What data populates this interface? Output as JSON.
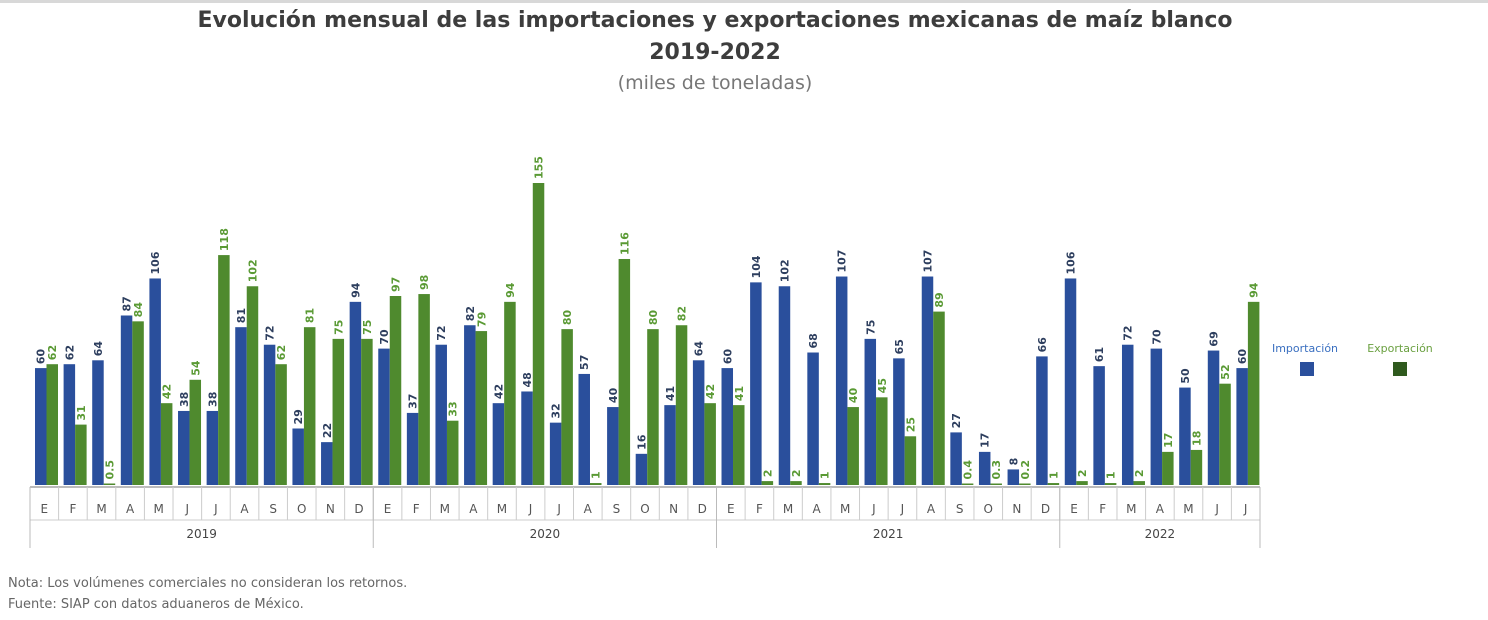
{
  "chart_data": {
    "type": "bar",
    "title": "Evolución mensual de las importaciones y exportaciones mexicanas de maíz blanco",
    "title_line2": "2019-2022",
    "subtitle": "(miles de toneladas)",
    "years": [
      {
        "label": "2019",
        "months": [
          "E",
          "F",
          "M",
          "A",
          "M",
          "J",
          "J",
          "A",
          "S",
          "O",
          "N",
          "D"
        ]
      },
      {
        "label": "2020",
        "months": [
          "E",
          "F",
          "M",
          "A",
          "M",
          "J",
          "J",
          "A",
          "S",
          "O",
          "N",
          "D"
        ]
      },
      {
        "label": "2021",
        "months": [
          "E",
          "F",
          "M",
          "A",
          "M",
          "J",
          "J",
          "A",
          "S",
          "O",
          "N",
          "D"
        ]
      },
      {
        "label": "2022",
        "months": [
          "E",
          "F",
          "M",
          "A",
          "M",
          "J",
          "J"
        ]
      }
    ],
    "series": [
      {
        "name": "Importación",
        "color": "#2a4f9c",
        "values": [
          60,
          62,
          64,
          87,
          106,
          38,
          38,
          81,
          72,
          29,
          22,
          94,
          70,
          37,
          72,
          82,
          42,
          48,
          32,
          57,
          40,
          16,
          41,
          64,
          60,
          104,
          102,
          68,
          107,
          75,
          65,
          107,
          27,
          17,
          8,
          66,
          106,
          61,
          72,
          70,
          50,
          69,
          60
        ]
      },
      {
        "name": "Exportación",
        "color": "#4f8a2e",
        "legend_swatch": "#2f5a1e",
        "values": [
          62,
          31,
          0.5,
          84,
          42,
          54,
          118,
          102,
          62,
          81,
          75,
          75,
          97,
          98,
          33,
          79,
          94,
          155,
          80,
          1,
          116,
          80,
          82,
          42,
          41,
          2,
          2,
          1,
          40,
          45,
          25,
          89,
          0.4,
          0.3,
          0.2,
          1,
          2,
          1,
          2,
          17,
          18,
          52,
          94
        ]
      }
    ],
    "ylim": [
      0,
      160
    ],
    "grid": false,
    "legend": "right"
  },
  "notes": {
    "nota": "Nota: Los volúmenes comerciales no consideran los retornos.",
    "fuente": "Fuente: SIAP con datos aduaneros de México."
  }
}
